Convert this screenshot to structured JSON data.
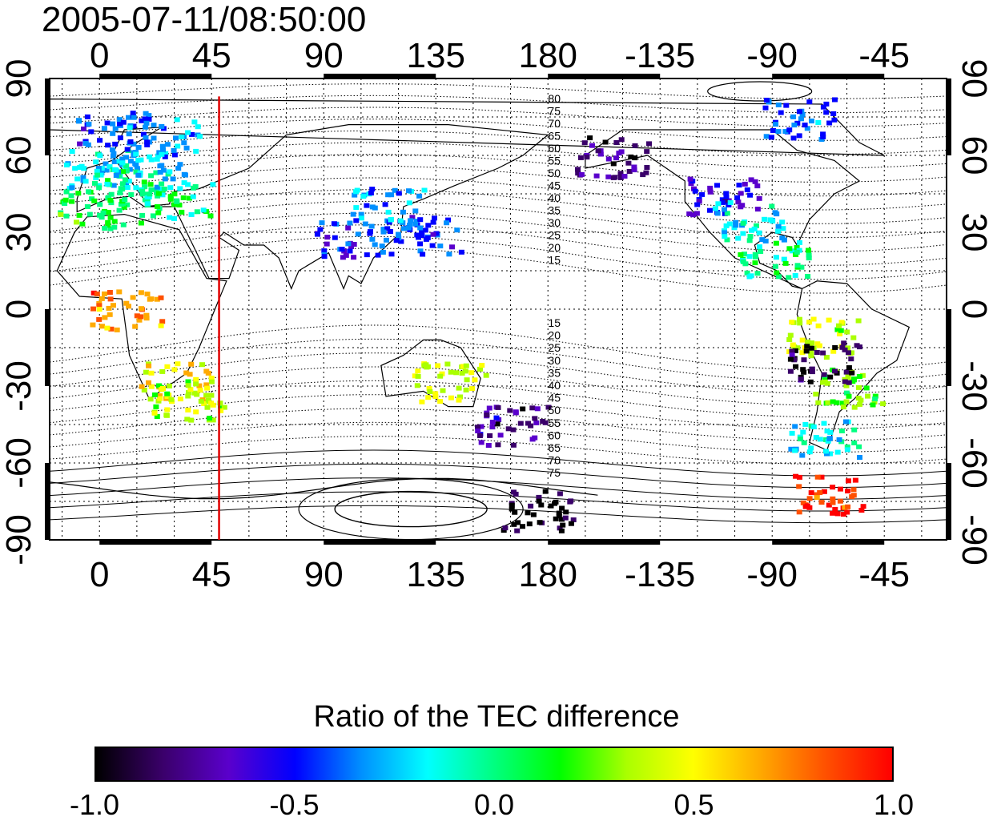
{
  "title": "2005-07-11/08:50:00",
  "map": {
    "lon_ticks_top": [
      "0",
      "45",
      "90",
      "135",
      "180",
      "-135",
      "-90",
      "-45"
    ],
    "lon_ticks_bottom": [
      "0",
      "45",
      "90",
      "135",
      "180",
      "-135",
      "-90",
      "-45"
    ],
    "lat_ticks_left": [
      "90",
      "60",
      "30",
      "0",
      "-30",
      "-60",
      "-90"
    ],
    "lat_ticks_right": [
      "90",
      "60",
      "30",
      "0",
      "-30",
      "-60",
      "-90"
    ],
    "lon_range": [
      -20,
      340
    ],
    "lat_range": [
      -90,
      90
    ],
    "grid": "dotted",
    "marker_line_longitude": 48,
    "marker_line_color": "#e00000",
    "contour_labels_north": [
      "80",
      "75",
      "70",
      "65",
      "60",
      "55",
      "50",
      "45",
      "40",
      "35",
      "30",
      "25",
      "20",
      "15"
    ],
    "contour_labels_south": [
      "15",
      "20",
      "25",
      "30",
      "35",
      "40",
      "45",
      "50",
      "55",
      "60",
      "65",
      "70",
      "75"
    ]
  },
  "colorbar": {
    "label": "Ratio of the TEC difference",
    "ticks": [
      "-1.0",
      "-0.5",
      "0.0",
      "0.5",
      "1.0"
    ],
    "range": [
      -1.0,
      1.0
    ],
    "colors": [
      "#000000",
      "#3a006a",
      "#5a00cc",
      "#0000ff",
      "#0090ff",
      "#00ffff",
      "#00ff80",
      "#00ff00",
      "#aaff00",
      "#ffff00",
      "#ffaa00",
      "#ff5000",
      "#ff0000"
    ]
  },
  "tec_regions": [
    {
      "lon": 0,
      "lat": 55,
      "v": -0.25
    },
    {
      "lon": 10,
      "lat": 48,
      "v": 0.0
    },
    {
      "lon": 20,
      "lat": 55,
      "v": -0.2
    },
    {
      "lon": 30,
      "lat": 42,
      "v": 0.05
    },
    {
      "lon": -5,
      "lat": 40,
      "v": 0.1
    },
    {
      "lon": 5,
      "lat": 70,
      "v": -0.45
    },
    {
      "lon": 25,
      "lat": 68,
      "v": -0.3
    },
    {
      "lon": 30,
      "lat": -28,
      "v": 0.5
    },
    {
      "lon": 35,
      "lat": -35,
      "v": 0.35
    },
    {
      "lon": 10,
      "lat": 0,
      "v": 0.75
    },
    {
      "lon": 130,
      "lat": 30,
      "v": -0.45
    },
    {
      "lon": 115,
      "lat": 40,
      "v": -0.3
    },
    {
      "lon": 100,
      "lat": 28,
      "v": -0.5
    },
    {
      "lon": 140,
      "lat": -28,
      "v": 0.4
    },
    {
      "lon": 165,
      "lat": -45,
      "v": -0.75
    },
    {
      "lon": 175,
      "lat": -78,
      "v": -0.95
    },
    {
      "lon": -155,
      "lat": 60,
      "v": -0.8
    },
    {
      "lon": -110,
      "lat": 45,
      "v": -0.6
    },
    {
      "lon": -100,
      "lat": 35,
      "v": -0.2
    },
    {
      "lon": -90,
      "lat": 20,
      "v": 0.0
    },
    {
      "lon": -70,
      "lat": -10,
      "v": 0.4
    },
    {
      "lon": -60,
      "lat": -30,
      "v": 0.2
    },
    {
      "lon": -70,
      "lat": -50,
      "v": -0.15
    },
    {
      "lon": -80,
      "lat": 75,
      "v": -0.4
    },
    {
      "lon": -68,
      "lat": -72,
      "v": 0.9
    },
    {
      "lon": -70,
      "lat": -20,
      "v": -0.9
    }
  ]
}
